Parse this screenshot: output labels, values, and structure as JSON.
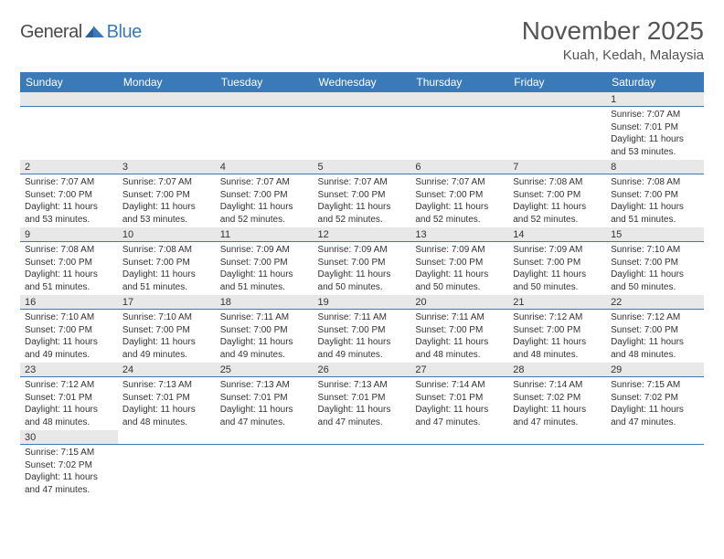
{
  "logo": {
    "general": "General",
    "blue": "Blue"
  },
  "title": "November 2025",
  "location": "Kuah, Kedah, Malaysia",
  "colors": {
    "header_bg": "#3a7ab8",
    "header_text": "#ffffff",
    "daynum_bg": "#e8e8e8",
    "border": "#3a7ab8",
    "text": "#333333",
    "title_text": "#555555"
  },
  "weekdays": [
    "Sunday",
    "Monday",
    "Tuesday",
    "Wednesday",
    "Thursday",
    "Friday",
    "Saturday"
  ],
  "weeks": [
    [
      null,
      null,
      null,
      null,
      null,
      null,
      {
        "d": "1",
        "sr": "7:07 AM",
        "ss": "7:01 PM",
        "dl": "11 hours and 53 minutes."
      }
    ],
    [
      {
        "d": "2",
        "sr": "7:07 AM",
        "ss": "7:00 PM",
        "dl": "11 hours and 53 minutes."
      },
      {
        "d": "3",
        "sr": "7:07 AM",
        "ss": "7:00 PM",
        "dl": "11 hours and 53 minutes."
      },
      {
        "d": "4",
        "sr": "7:07 AM",
        "ss": "7:00 PM",
        "dl": "11 hours and 52 minutes."
      },
      {
        "d": "5",
        "sr": "7:07 AM",
        "ss": "7:00 PM",
        "dl": "11 hours and 52 minutes."
      },
      {
        "d": "6",
        "sr": "7:07 AM",
        "ss": "7:00 PM",
        "dl": "11 hours and 52 minutes."
      },
      {
        "d": "7",
        "sr": "7:08 AM",
        "ss": "7:00 PM",
        "dl": "11 hours and 52 minutes."
      },
      {
        "d": "8",
        "sr": "7:08 AM",
        "ss": "7:00 PM",
        "dl": "11 hours and 51 minutes."
      }
    ],
    [
      {
        "d": "9",
        "sr": "7:08 AM",
        "ss": "7:00 PM",
        "dl": "11 hours and 51 minutes."
      },
      {
        "d": "10",
        "sr": "7:08 AM",
        "ss": "7:00 PM",
        "dl": "11 hours and 51 minutes."
      },
      {
        "d": "11",
        "sr": "7:09 AM",
        "ss": "7:00 PM",
        "dl": "11 hours and 51 minutes."
      },
      {
        "d": "12",
        "sr": "7:09 AM",
        "ss": "7:00 PM",
        "dl": "11 hours and 50 minutes."
      },
      {
        "d": "13",
        "sr": "7:09 AM",
        "ss": "7:00 PM",
        "dl": "11 hours and 50 minutes."
      },
      {
        "d": "14",
        "sr": "7:09 AM",
        "ss": "7:00 PM",
        "dl": "11 hours and 50 minutes."
      },
      {
        "d": "15",
        "sr": "7:10 AM",
        "ss": "7:00 PM",
        "dl": "11 hours and 50 minutes."
      }
    ],
    [
      {
        "d": "16",
        "sr": "7:10 AM",
        "ss": "7:00 PM",
        "dl": "11 hours and 49 minutes."
      },
      {
        "d": "17",
        "sr": "7:10 AM",
        "ss": "7:00 PM",
        "dl": "11 hours and 49 minutes."
      },
      {
        "d": "18",
        "sr": "7:11 AM",
        "ss": "7:00 PM",
        "dl": "11 hours and 49 minutes."
      },
      {
        "d": "19",
        "sr": "7:11 AM",
        "ss": "7:00 PM",
        "dl": "11 hours and 49 minutes."
      },
      {
        "d": "20",
        "sr": "7:11 AM",
        "ss": "7:00 PM",
        "dl": "11 hours and 48 minutes."
      },
      {
        "d": "21",
        "sr": "7:12 AM",
        "ss": "7:00 PM",
        "dl": "11 hours and 48 minutes."
      },
      {
        "d": "22",
        "sr": "7:12 AM",
        "ss": "7:00 PM",
        "dl": "11 hours and 48 minutes."
      }
    ],
    [
      {
        "d": "23",
        "sr": "7:12 AM",
        "ss": "7:01 PM",
        "dl": "11 hours and 48 minutes."
      },
      {
        "d": "24",
        "sr": "7:13 AM",
        "ss": "7:01 PM",
        "dl": "11 hours and 48 minutes."
      },
      {
        "d": "25",
        "sr": "7:13 AM",
        "ss": "7:01 PM",
        "dl": "11 hours and 47 minutes."
      },
      {
        "d": "26",
        "sr": "7:13 AM",
        "ss": "7:01 PM",
        "dl": "11 hours and 47 minutes."
      },
      {
        "d": "27",
        "sr": "7:14 AM",
        "ss": "7:01 PM",
        "dl": "11 hours and 47 minutes."
      },
      {
        "d": "28",
        "sr": "7:14 AM",
        "ss": "7:02 PM",
        "dl": "11 hours and 47 minutes."
      },
      {
        "d": "29",
        "sr": "7:15 AM",
        "ss": "7:02 PM",
        "dl": "11 hours and 47 minutes."
      }
    ],
    [
      {
        "d": "30",
        "sr": "7:15 AM",
        "ss": "7:02 PM",
        "dl": "11 hours and 47 minutes."
      },
      null,
      null,
      null,
      null,
      null,
      null
    ]
  ],
  "labels": {
    "sunrise": "Sunrise: ",
    "sunset": "Sunset: ",
    "daylight": "Daylight: "
  }
}
